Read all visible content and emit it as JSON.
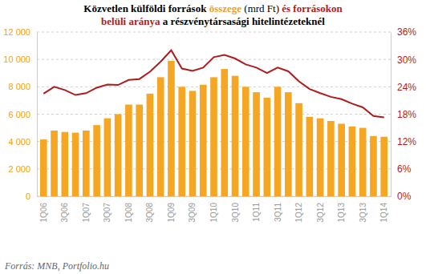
{
  "chart_data": {
    "type": "bar",
    "title": [
      [
        {
          "text": "Közvetlen külföldi források ",
          "color": "#000000"
        },
        {
          "text": "összege",
          "color": "#f0a020"
        },
        {
          "text": " (mrd Ft) ",
          "color": "#000000"
        },
        {
          "text": "és forrásokon",
          "color": "#b01c1c"
        }
      ],
      [
        {
          "text": "belüli aránya",
          "color": "#b01c1c"
        },
        {
          "text": " a részvénytársasági hitelintézeteknél",
          "color": "#000000"
        }
      ]
    ],
    "source": "Forrás: MNB, Portfolio.hu",
    "categories": [
      "1Q06",
      null,
      "3Q06",
      null,
      "1Q07",
      null,
      "3Q07",
      null,
      "1Q08",
      null,
      "3Q08",
      null,
      "1Q09",
      null,
      "3Q09",
      null,
      "1Q10",
      null,
      "3Q10",
      null,
      "1Q11",
      null,
      "3Q11",
      null,
      "1Q12",
      null,
      "3Q12",
      null,
      "1Q13",
      null,
      "3Q13",
      null,
      "1Q14"
    ],
    "series": [
      {
        "name": "Közvetlen külföldi források összege (mrd Ft)",
        "type": "bar",
        "color": "#f5a623",
        "values": [
          4150,
          4800,
          4700,
          4650,
          4800,
          5200,
          5700,
          6000,
          6700,
          6700,
          7500,
          8700,
          9900,
          8000,
          7700,
          8150,
          8700,
          9300,
          8800,
          8000,
          7600,
          7200,
          8000,
          7600,
          6800,
          5800,
          5700,
          5500,
          5300,
          5100,
          5000,
          4400,
          4350
        ]
      },
      {
        "name": "Forrásokon belüli aránya",
        "type": "line",
        "color": "#b01c1c",
        "axis": "y2",
        "values": [
          22.5,
          24,
          23.3,
          22.2,
          22.6,
          23.8,
          24.5,
          24.4,
          25.5,
          25.7,
          27.3,
          29.5,
          32,
          28,
          27.5,
          28.2,
          30.5,
          31,
          30.2,
          28.9,
          28.2,
          27,
          28.2,
          27.4,
          25.2,
          23.5,
          22.6,
          21.8,
          21.3,
          20.3,
          19.5,
          17.6,
          17.3
        ]
      }
    ],
    "ylim": [
      0,
      12000
    ],
    "yticks": [
      0,
      {
        "value": 2000,
        "label": "2 000"
      },
      {
        "value": 4000,
        "label": "4 000"
      },
      {
        "value": 6000,
        "label": "6 000"
      },
      {
        "value": 8000,
        "label": "8 000"
      },
      {
        "value": 10000,
        "label": "10 000"
      },
      {
        "value": 12000,
        "label": "12 000"
      }
    ],
    "y2lim": [
      0,
      36
    ],
    "y2ticks": [
      {
        "value": 0,
        "label": "0%"
      },
      {
        "value": 6,
        "label": "6%"
      },
      {
        "value": 12,
        "label": "12%"
      },
      {
        "value": 18,
        "label": "18%"
      },
      {
        "value": 24,
        "label": "24%"
      },
      {
        "value": 30,
        "label": "30%"
      },
      {
        "value": 36,
        "label": "36%"
      }
    ],
    "grid": true
  }
}
